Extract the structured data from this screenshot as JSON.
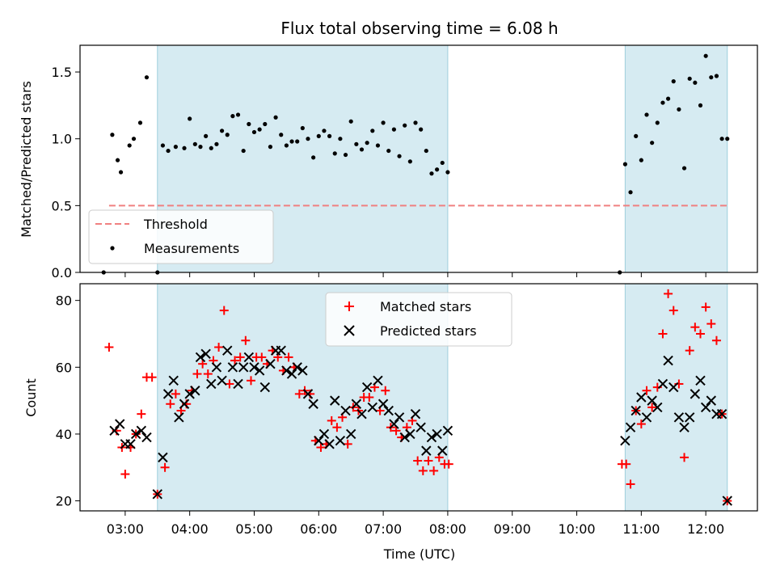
{
  "chart_data": [
    {
      "type": "scatter",
      "title": "Flux total observing time = 6.08 h",
      "xlabel": "",
      "ylabel": "Matched/Predicted stars",
      "ylim": [
        0,
        1.7
      ],
      "y_ticks": [
        "0.0",
        "0.5",
        "1.0",
        "1.5"
      ],
      "legend": {
        "position": "lower-left",
        "entries": [
          "Threshold",
          "Measurements"
        ]
      },
      "threshold": {
        "name": "Threshold",
        "value": 0.5,
        "x_range": [
          "02:45",
          "12:20"
        ],
        "color": "#f08080"
      },
      "series": [
        {
          "name": "Measurements",
          "color": "#000000",
          "x": [
            "02:40",
            "02:48",
            "02:53",
            "02:56",
            "03:04",
            "03:08",
            "03:14",
            "03:20",
            "03:30",
            "03:35",
            "03:40",
            "03:47",
            "03:55",
            "04:00",
            "04:05",
            "04:10",
            "04:15",
            "04:20",
            "04:25",
            "04:30",
            "04:35",
            "04:40",
            "04:45",
            "04:50",
            "04:55",
            "05:00",
            "05:05",
            "05:10",
            "05:15",
            "05:20",
            "05:25",
            "05:30",
            "05:35",
            "05:40",
            "05:45",
            "05:50",
            "05:55",
            "06:00",
            "06:05",
            "06:10",
            "06:15",
            "06:20",
            "06:25",
            "06:30",
            "06:35",
            "06:40",
            "06:45",
            "06:50",
            "06:55",
            "07:00",
            "07:05",
            "07:10",
            "07:15",
            "07:20",
            "07:25",
            "07:30",
            "07:35",
            "07:40",
            "07:45",
            "07:50",
            "07:55",
            "08:00",
            "10:40",
            "10:45",
            "10:50",
            "10:55",
            "11:00",
            "11:05",
            "11:10",
            "11:15",
            "11:20",
            "11:25",
            "11:30",
            "11:35",
            "11:40",
            "11:45",
            "11:50",
            "11:55",
            "12:00",
            "12:05",
            "12:10",
            "12:15",
            "12:20"
          ],
          "y": [
            0.0,
            1.03,
            0.84,
            0.75,
            0.95,
            1.0,
            1.12,
            1.46,
            0.0,
            0.95,
            0.91,
            0.94,
            0.93,
            1.15,
            0.96,
            0.94,
            1.02,
            0.93,
            0.96,
            1.06,
            1.03,
            1.17,
            1.18,
            0.91,
            1.11,
            1.05,
            1.07,
            1.11,
            0.94,
            1.16,
            1.03,
            0.95,
            0.98,
            0.98,
            1.08,
            1.0,
            0.86,
            1.02,
            1.06,
            1.02,
            0.89,
            1.0,
            0.88,
            1.13,
            0.96,
            0.92,
            0.97,
            1.06,
            0.95,
            1.12,
            0.91,
            1.07,
            0.87,
            1.1,
            0.83,
            1.12,
            1.07,
            0.91,
            0.74,
            0.77,
            0.82,
            0.75,
            0.0,
            0.81,
            0.6,
            1.02,
            0.84,
            1.18,
            0.97,
            1.12,
            1.27,
            1.3,
            1.43,
            1.22,
            0.78,
            1.45,
            1.42,
            1.25,
            1.62,
            1.46,
            1.47,
            1.0,
            1.0
          ]
        }
      ],
      "shaded_regions": [
        [
          "03:30",
          "08:00"
        ],
        [
          "10:45",
          "12:20"
        ]
      ]
    },
    {
      "type": "scatter",
      "xlabel": "Time (UTC)",
      "ylabel": "Count",
      "ylim": [
        17,
        85
      ],
      "x_ticks": [
        "03:00",
        "04:00",
        "05:00",
        "06:00",
        "07:00",
        "08:00",
        "09:00",
        "10:00",
        "11:00",
        "12:00"
      ],
      "y_ticks": [
        "20",
        "40",
        "60",
        "80"
      ],
      "legend": {
        "position": "top-center",
        "entries": [
          "Matched stars",
          "Predicted stars"
        ]
      },
      "series": [
        {
          "name": "Matched stars",
          "color": "#ff0000",
          "x": [
            "02:45",
            "02:52",
            "02:57",
            "03:00",
            "03:05",
            "03:10",
            "03:15",
            "03:20",
            "03:25",
            "03:30",
            "03:37",
            "03:42",
            "03:47",
            "03:52",
            "03:57",
            "04:02",
            "04:07",
            "04:12",
            "04:17",
            "04:22",
            "04:27",
            "04:32",
            "04:37",
            "04:42",
            "04:47",
            "04:52",
            "04:57",
            "05:02",
            "05:07",
            "05:12",
            "05:17",
            "05:22",
            "05:27",
            "05:32",
            "05:37",
            "05:42",
            "05:47",
            "05:52",
            "05:57",
            "06:02",
            "06:07",
            "06:12",
            "06:17",
            "06:22",
            "06:27",
            "06:32",
            "06:37",
            "06:42",
            "06:47",
            "06:52",
            "06:57",
            "07:02",
            "07:07",
            "07:12",
            "07:17",
            "07:22",
            "07:27",
            "07:32",
            "07:37",
            "07:42",
            "07:47",
            "07:52",
            "07:57",
            "08:01",
            "10:42",
            "10:46",
            "10:50",
            "10:55",
            "11:00",
            "11:05",
            "11:10",
            "11:15",
            "11:20",
            "11:25",
            "11:30",
            "11:35",
            "11:40",
            "11:45",
            "11:50",
            "11:55",
            "12:00",
            "12:05",
            "12:10",
            "12:15",
            "12:20"
          ],
          "y": [
            66,
            41,
            36,
            28,
            36,
            40,
            46,
            57,
            57,
            22,
            30,
            49,
            52,
            47,
            49,
            53,
            58,
            61,
            58,
            62,
            66,
            77,
            55,
            62,
            63,
            68,
            56,
            63,
            63,
            61,
            65,
            63,
            59,
            63,
            60,
            52,
            53,
            52,
            38,
            36,
            37,
            44,
            42,
            45,
            37,
            48,
            47,
            51,
            51,
            54,
            47,
            53,
            42,
            41,
            39,
            42,
            44,
            32,
            29,
            32,
            29,
            33,
            31,
            31,
            31,
            31,
            25,
            47,
            43,
            53,
            48,
            54,
            70,
            82,
            77,
            55,
            33,
            65,
            72,
            70,
            78,
            73,
            68,
            46,
            20
          ]
        },
        {
          "name": "Predicted stars",
          "color": "#000000",
          "x": [
            "02:50",
            "02:55",
            "03:00",
            "03:05",
            "03:10",
            "03:15",
            "03:20",
            "03:30",
            "03:35",
            "03:40",
            "03:45",
            "03:50",
            "03:55",
            "04:00",
            "04:05",
            "04:10",
            "04:15",
            "04:20",
            "04:25",
            "04:30",
            "04:35",
            "04:40",
            "04:45",
            "04:50",
            "04:55",
            "05:00",
            "05:05",
            "05:10",
            "05:15",
            "05:20",
            "05:25",
            "05:30",
            "05:35",
            "05:40",
            "05:45",
            "05:50",
            "05:55",
            "06:00",
            "06:05",
            "06:10",
            "06:15",
            "06:20",
            "06:25",
            "06:30",
            "06:35",
            "06:40",
            "06:45",
            "06:50",
            "06:55",
            "07:00",
            "07:05",
            "07:10",
            "07:15",
            "07:20",
            "07:25",
            "07:30",
            "07:35",
            "07:40",
            "07:45",
            "07:50",
            "07:55",
            "08:00",
            "10:45",
            "10:50",
            "10:55",
            "11:00",
            "11:05",
            "11:10",
            "11:15",
            "11:20",
            "11:25",
            "11:30",
            "11:35",
            "11:40",
            "11:45",
            "11:50",
            "11:55",
            "12:00",
            "12:05",
            "12:10",
            "12:15",
            "12:20"
          ],
          "y": [
            41,
            43,
            37,
            37,
            40,
            41,
            39,
            22,
            33,
            52,
            56,
            45,
            49,
            52,
            53,
            63,
            64,
            55,
            60,
            56,
            65,
            60,
            55,
            60,
            63,
            60,
            59,
            54,
            61,
            65,
            65,
            59,
            58,
            60,
            59,
            52,
            49,
            38,
            40,
            37,
            50,
            38,
            47,
            40,
            49,
            46,
            54,
            48,
            56,
            49,
            47,
            43,
            45,
            39,
            40,
            46,
            42,
            35,
            39,
            40,
            35,
            41,
            38,
            42,
            47,
            51,
            45,
            50,
            48,
            55,
            62,
            54,
            45,
            42,
            45,
            52,
            56,
            48,
            50,
            46,
            46,
            20
          ]
        }
      ],
      "shaded_regions": [
        [
          "03:30",
          "08:00"
        ],
        [
          "10:45",
          "12:20"
        ]
      ]
    }
  ]
}
